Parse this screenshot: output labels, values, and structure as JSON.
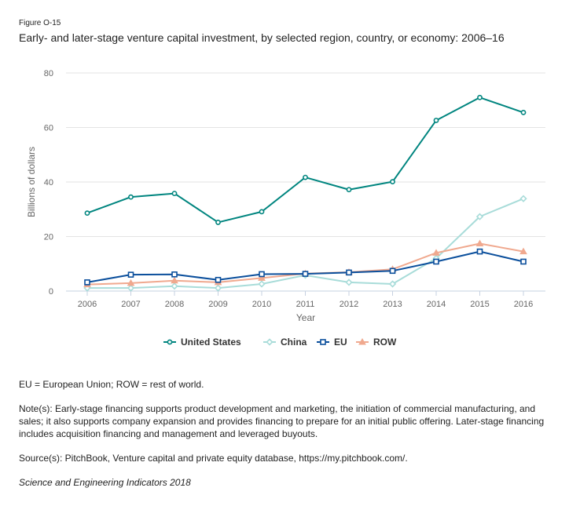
{
  "figure_label": "Figure O-15",
  "title": "Early- and later-stage venture capital investment, by selected region, country, or economy: 2006–16",
  "notes": {
    "abbreviations": "EU = European Union; ROW = rest of world.",
    "note": "Note(s): Early-stage financing supports product development and marketing, the initiation of commercial manufacturing, and sales; it also supports company expansion and provides financing to prepare for an initial public offering. Later-stage financing includes acquisition financing and management and leveraged buyouts.",
    "source": "Source(s): PitchBook, Venture capital and private equity database, https://my.pitchbook.com/.",
    "publication": "Science and Engineering Indicators 2018"
  },
  "chart_data": {
    "type": "line",
    "title": "Early- and later-stage venture capital investment, by selected region, country, or economy: 2006–16",
    "xlabel": "Year",
    "ylabel": "Billions of dollars",
    "x": [
      "2006",
      "2007",
      "2008",
      "2009",
      "2010",
      "2011",
      "2012",
      "2013",
      "2014",
      "2015",
      "2016"
    ],
    "ylim": [
      0,
      80
    ],
    "yticks": [
      "0",
      "20",
      "40",
      "60",
      "80"
    ],
    "grid": true,
    "legend_position": "bottom-center",
    "series": [
      {
        "name": "United States",
        "color": "#00857f",
        "marker": "circle",
        "values": [
          28.6,
          34.5,
          35.8,
          25.2,
          29.1,
          41.7,
          37.2,
          40.1,
          62.6,
          71.0,
          65.5
        ]
      },
      {
        "name": "China",
        "color": "#a8dcd9",
        "marker": "diamond",
        "values": [
          1.1,
          1.1,
          1.8,
          1.1,
          2.6,
          5.8,
          3.2,
          2.6,
          12.0,
          27.3,
          33.9
        ]
      },
      {
        "name": "EU",
        "color": "#0b4f9c",
        "marker": "square",
        "values": [
          3.2,
          6.0,
          6.1,
          4.1,
          6.2,
          6.3,
          6.8,
          7.4,
          10.8,
          14.5,
          10.8
        ]
      },
      {
        "name": "ROW",
        "color": "#f0a98f",
        "marker": "triangle",
        "values": [
          2.4,
          2.9,
          3.8,
          3.2,
          4.8,
          6.4,
          6.9,
          8.0,
          14.0,
          17.4,
          14.5
        ]
      }
    ]
  }
}
